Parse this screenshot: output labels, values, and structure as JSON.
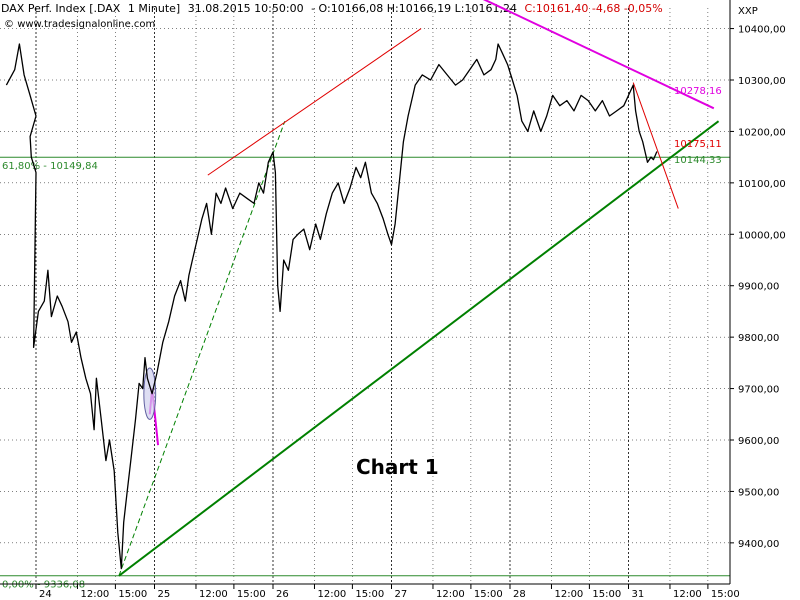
{
  "header": {
    "instrument": "DAX Perf. Index [.DAX",
    "interval": "1 Minute]",
    "datetime": "31.08.2015 10:50:00",
    "ohlc": "- O:10166,08 H:10166,19 L:10161,24",
    "close_change": "C:10161,40 -4,68 -0,05%",
    "source": "www.tradesignalonline.com",
    "axis_symbol": "XXP"
  },
  "chart_title": "Chart 1",
  "colors": {
    "price": "#000000",
    "grid": "#000000",
    "fib": "#2d8a2d",
    "uptrend": "#008000",
    "magenta": "#e000e0",
    "red": "#e00000",
    "change_text": "#d40000"
  },
  "chart_data": {
    "type": "line",
    "title": "Chart 1",
    "xlabel": "",
    "ylabel": "",
    "grid": true,
    "y_axis_side": "right",
    "ylim": [
      9320,
      10440
    ],
    "y_ticks": [
      9400,
      9500,
      9600,
      9700,
      9800,
      9900,
      10000,
      10100,
      10200,
      10300,
      10400
    ],
    "y_tick_labels": [
      "9400,00",
      "9500,00",
      "9600,00",
      "9700,00",
      "9800,00",
      "9900,00",
      "10000,00",
      "10100,00",
      "10200,00",
      "10300,00",
      "10400,00"
    ],
    "x_unit": "trading sessions",
    "xlim": [
      0,
      6.26
    ],
    "x_ticks": [
      {
        "x": 0.0,
        "label": "24"
      },
      {
        "x": 0.35,
        "label": "12:00"
      },
      {
        "x": 0.67,
        "label": "15:00"
      },
      {
        "x": 1.0,
        "label": "25"
      },
      {
        "x": 1.35,
        "label": "12:00"
      },
      {
        "x": 1.67,
        "label": "15:00"
      },
      {
        "x": 2.0,
        "label": "26"
      },
      {
        "x": 2.35,
        "label": "12:00"
      },
      {
        "x": 2.67,
        "label": "15:00"
      },
      {
        "x": 3.0,
        "label": "27"
      },
      {
        "x": 3.35,
        "label": "12:00"
      },
      {
        "x": 3.67,
        "label": "15:00"
      },
      {
        "x": 4.0,
        "label": "28"
      },
      {
        "x": 4.35,
        "label": "12:00"
      },
      {
        "x": 4.67,
        "label": "15:00"
      },
      {
        "x": 5.0,
        "label": "31"
      },
      {
        "x": 5.35,
        "label": "12:00"
      },
      {
        "x": 5.67,
        "label": "15:00"
      }
    ],
    "series": [
      {
        "values": [
          [
            -0.25,
            10290
          ],
          [
            -0.18,
            10320
          ],
          [
            -0.14,
            10370
          ],
          [
            -0.1,
            10310
          ],
          [
            -0.05,
            10270
          ],
          [
            0.0,
            10230
          ],
          [
            -0.05,
            10190
          ],
          [
            -0.04,
            10150
          ],
          [
            0.0,
            10120
          ],
          [
            -0.02,
            9780
          ],
          [
            0.02,
            9850
          ],
          [
            0.07,
            9870
          ],
          [
            0.1,
            9930
          ],
          [
            0.13,
            9840
          ],
          [
            0.18,
            9880
          ],
          [
            0.22,
            9860
          ],
          [
            0.27,
            9830
          ],
          [
            0.3,
            9790
          ],
          [
            0.34,
            9810
          ],
          [
            0.38,
            9760
          ],
          [
            0.42,
            9720
          ],
          [
            0.46,
            9690
          ],
          [
            0.49,
            9620
          ],
          [
            0.51,
            9720
          ],
          [
            0.55,
            9640
          ],
          [
            0.59,
            9560
          ],
          [
            0.62,
            9600
          ],
          [
            0.66,
            9540
          ],
          [
            0.69,
            9420
          ],
          [
            0.72,
            9350
          ],
          [
            0.74,
            9440
          ],
          [
            0.77,
            9500
          ],
          [
            0.8,
            9560
          ],
          [
            0.84,
            9640
          ],
          [
            0.87,
            9710
          ],
          [
            0.9,
            9700
          ],
          [
            0.92,
            9760
          ],
          [
            0.94,
            9720
          ],
          [
            0.98,
            9690
          ],
          [
            1.02,
            9730
          ],
          [
            1.07,
            9790
          ],
          [
            1.12,
            9830
          ],
          [
            1.17,
            9880
          ],
          [
            1.22,
            9910
          ],
          [
            1.26,
            9870
          ],
          [
            1.29,
            9920
          ],
          [
            1.32,
            9950
          ],
          [
            1.36,
            9990
          ],
          [
            1.4,
            10030
          ],
          [
            1.44,
            10060
          ],
          [
            1.48,
            10000
          ],
          [
            1.52,
            10080
          ],
          [
            1.56,
            10060
          ],
          [
            1.6,
            10090
          ],
          [
            1.66,
            10050
          ],
          [
            1.72,
            10080
          ],
          [
            1.78,
            10070
          ],
          [
            1.84,
            10060
          ],
          [
            1.88,
            10100
          ],
          [
            1.92,
            10080
          ],
          [
            1.96,
            10140
          ],
          [
            2.0,
            10160
          ],
          [
            2.02,
            10120
          ],
          [
            2.04,
            9900
          ],
          [
            2.06,
            9850
          ],
          [
            2.09,
            9950
          ],
          [
            2.13,
            9930
          ],
          [
            2.17,
            9990
          ],
          [
            2.21,
            10000
          ],
          [
            2.26,
            10010
          ],
          [
            2.31,
            9970
          ],
          [
            2.36,
            10020
          ],
          [
            2.4,
            9990
          ],
          [
            2.45,
            10040
          ],
          [
            2.5,
            10080
          ],
          [
            2.55,
            10100
          ],
          [
            2.6,
            10060
          ],
          [
            2.65,
            10090
          ],
          [
            2.7,
            10130
          ],
          [
            2.74,
            10110
          ],
          [
            2.78,
            10140
          ],
          [
            2.83,
            10080
          ],
          [
            2.88,
            10060
          ],
          [
            2.93,
            10030
          ],
          [
            2.97,
            10000
          ],
          [
            3.0,
            9980
          ],
          [
            3.03,
            10020
          ],
          [
            3.1,
            10180
          ],
          [
            3.14,
            10230
          ],
          [
            3.2,
            10290
          ],
          [
            3.26,
            10310
          ],
          [
            3.33,
            10300
          ],
          [
            3.4,
            10330
          ],
          [
            3.47,
            10310
          ],
          [
            3.54,
            10290
          ],
          [
            3.6,
            10300
          ],
          [
            3.66,
            10320
          ],
          [
            3.72,
            10340
          ],
          [
            3.78,
            10310
          ],
          [
            3.84,
            10320
          ],
          [
            3.88,
            10340
          ],
          [
            3.9,
            10370
          ],
          [
            3.94,
            10350
          ],
          [
            3.98,
            10330
          ],
          [
            4.02,
            10300
          ],
          [
            4.06,
            10270
          ],
          [
            4.1,
            10220
          ],
          [
            4.15,
            10200
          ],
          [
            4.2,
            10240
          ],
          [
            4.26,
            10200
          ],
          [
            4.31,
            10230
          ],
          [
            4.36,
            10270
          ],
          [
            4.42,
            10250
          ],
          [
            4.48,
            10260
          ],
          [
            4.54,
            10240
          ],
          [
            4.6,
            10270
          ],
          [
            4.66,
            10260
          ],
          [
            4.72,
            10240
          ],
          [
            4.78,
            10260
          ],
          [
            4.84,
            10230
          ],
          [
            4.9,
            10240
          ],
          [
            4.96,
            10250
          ],
          [
            5.0,
            10270
          ],
          [
            5.04,
            10290
          ],
          [
            5.06,
            10240
          ],
          [
            5.09,
            10200
          ],
          [
            5.12,
            10180
          ],
          [
            5.14,
            10160
          ],
          [
            5.16,
            10140
          ],
          [
            5.19,
            10150
          ],
          [
            5.21,
            10145
          ],
          [
            5.24,
            10161
          ]
        ]
      }
    ],
    "levels": [
      {
        "label": "61,80% - 10149,84",
        "value": 10149.84
      },
      {
        "label": "0,00% - 9336,08",
        "value": 9336.08
      }
    ],
    "trendlines": [
      {
        "kind": "support",
        "style": "solid",
        "from": [
          0.7,
          9336
        ],
        "to": [
          5.76,
          10220
        ]
      },
      {
        "kind": "support",
        "style": "dashed",
        "from": [
          0.7,
          9336
        ],
        "to": [
          2.1,
          10220
        ]
      },
      {
        "kind": "resistance",
        "style": "solid",
        "from": [
          3.75,
          10460
        ],
        "to": [
          5.72,
          10245
        ]
      },
      {
        "kind": "channel",
        "style": "solid",
        "from": [
          1.45,
          10115
        ],
        "to": [
          3.25,
          10400
        ]
      },
      {
        "kind": "down",
        "style": "solid",
        "from": [
          5.04,
          10295
        ],
        "to": [
          5.42,
          10050
        ]
      },
      {
        "kind": "swing",
        "style": "solid",
        "from": [
          0.98,
          9700
        ],
        "to": [
          1.03,
          9590
        ]
      },
      {
        "kind": "swing",
        "style": "solid",
        "from": [
          0.96,
          9650
        ],
        "to": [
          0.98,
          9700
        ]
      }
    ],
    "highlight_ellipse": {
      "center": [
        0.96,
        9690
      ],
      "radius_x": 0.05,
      "radius_y": 50
    },
    "annotations": [
      {
        "text": "10278,16",
        "x": 5.3,
        "y": 10278.16,
        "color": "#e000e0"
      },
      {
        "text": "10175,11",
        "x": 5.3,
        "y": 10175.11,
        "color": "#e00000"
      },
      {
        "text": "10144,33",
        "x": 5.3,
        "y": 10144.33,
        "color": "#2d8a2d"
      }
    ]
  }
}
